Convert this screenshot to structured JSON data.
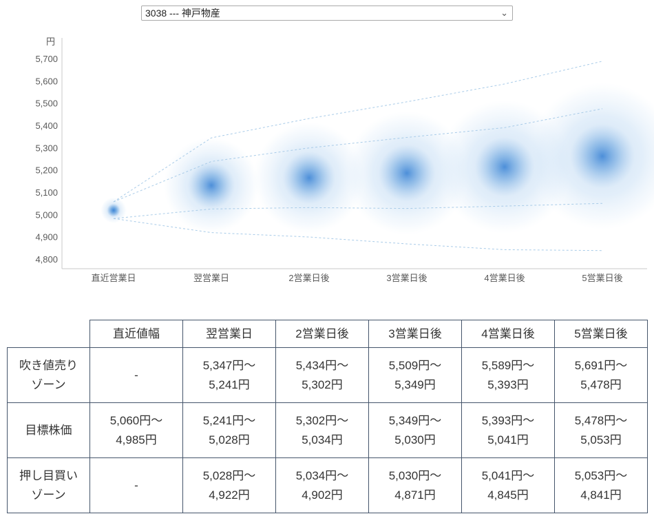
{
  "selector": {
    "selected": "3038 --- 神戸物産"
  },
  "chart_data": {
    "type": "scatter",
    "title": "",
    "ylabel": "円",
    "unit_label": "円",
    "ylim": [
      4800,
      5750
    ],
    "y_ticks": [
      5700,
      5600,
      5500,
      5400,
      5300,
      5200,
      5100,
      5000,
      4900,
      4800
    ],
    "categories": [
      "直近営業日",
      "翌営業日",
      "2営業日後",
      "3営業日後",
      "4営業日後",
      "5営業日後"
    ],
    "grid": false,
    "legend": false,
    "bubbles": [
      {
        "day": 0,
        "center": 5022,
        "core_radius": 30,
        "glow_radius": 58,
        "solid": true
      },
      {
        "day": 1,
        "center": 5134,
        "core_radius": 106,
        "glow_radius": 215
      },
      {
        "day": 2,
        "center": 5168,
        "core_radius": 118,
        "glow_radius": 250
      },
      {
        "day": 3,
        "center": 5189,
        "core_radius": 128,
        "glow_radius": 278
      },
      {
        "day": 4,
        "center": 5217,
        "core_radius": 134,
        "glow_radius": 300
      },
      {
        "day": 5,
        "center": 5265,
        "core_radius": 145,
        "glow_radius": 330
      }
    ],
    "fan_lines": [
      {
        "name": "sell-zone-upper",
        "values": [
          5060,
          5347,
          5434,
          5509,
          5589,
          5691
        ]
      },
      {
        "name": "sell-zone-lower",
        "values": [
          5060,
          5241,
          5302,
          5349,
          5393,
          5478
        ]
      },
      {
        "name": "buy-zone-upper",
        "values": [
          4985,
          5028,
          5034,
          5030,
          5041,
          5053
        ]
      },
      {
        "name": "buy-zone-lower",
        "values": [
          4985,
          4922,
          4902,
          4871,
          4845,
          4841
        ]
      }
    ],
    "colors": {
      "axis": "#c9c9c9",
      "tick_text": "#595959",
      "fan_line": "#a8cbe8",
      "bubble_core": "#3f86d6",
      "bubble_glow": "#a9cdef"
    }
  },
  "table": {
    "corner": "",
    "headers": [
      "直近値幅",
      "翌営業日",
      "2営業日後",
      "3営業日後",
      "4営業日後",
      "5営業日後"
    ],
    "rows": [
      {
        "label": "吹き値売り\nゾーン",
        "cells": [
          "-",
          "5,347円～\n5,241円",
          "5,434円～\n5,302円",
          "5,509円～\n5,349円",
          "5,589円～\n5,393円",
          "5,691円～\n5,478円"
        ]
      },
      {
        "label": "目標株価",
        "cells": [
          "5,060円～\n4,985円",
          "5,241円～\n5,028円",
          "5,302円～\n5,034円",
          "5,349円～\n5,030円",
          "5,393円～\n5,041円",
          "5,478円～\n5,053円"
        ]
      },
      {
        "label": "押し目買い\nゾーン",
        "cells": [
          "-",
          "5,028円～\n4,922円",
          "5,034円～\n4,902円",
          "5,030円～\n4,871円",
          "5,041円～\n4,845円",
          "5,053円～\n4,841円"
        ]
      }
    ]
  }
}
